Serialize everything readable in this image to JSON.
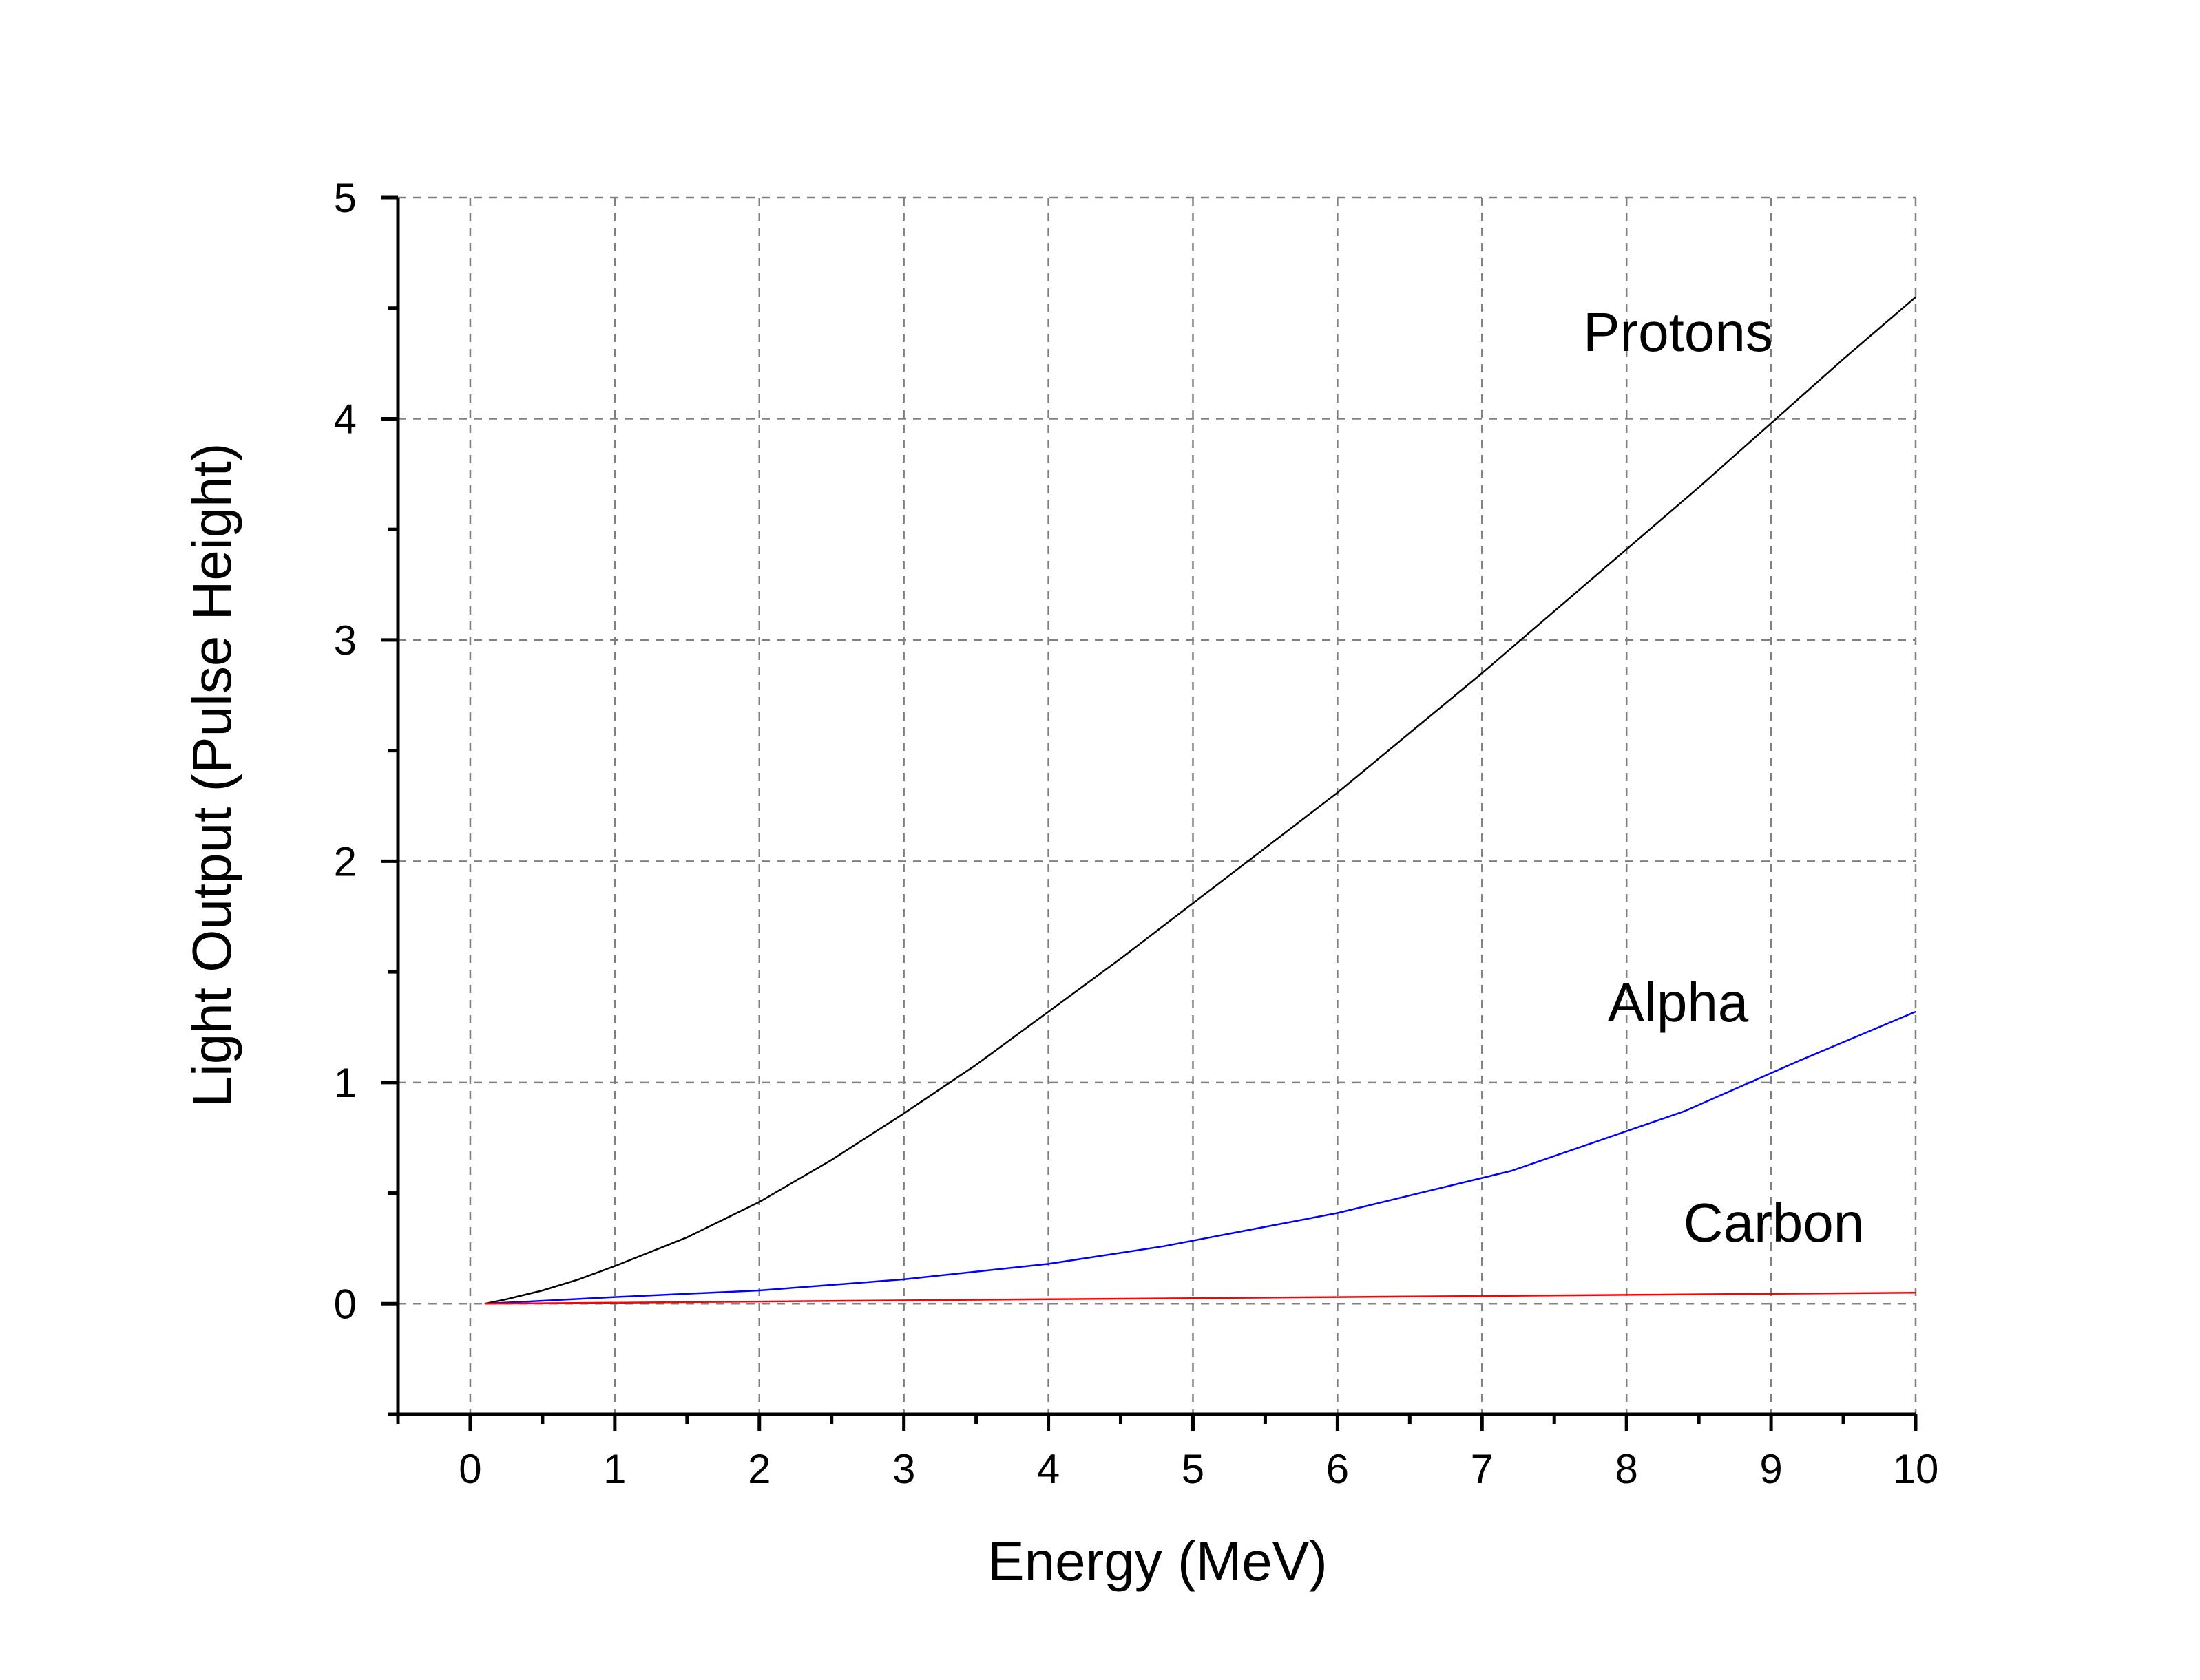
{
  "chart_data": {
    "type": "line",
    "xlabel": "Energy (MeV)",
    "ylabel": "Light Output (Pulse Height)",
    "xlim": [
      -0.5,
      10
    ],
    "ylim": [
      -0.5,
      5
    ],
    "xticks": [
      0,
      1,
      2,
      3,
      4,
      5,
      6,
      7,
      8,
      9,
      10
    ],
    "yticks": [
      0,
      1,
      2,
      3,
      4,
      5
    ],
    "grid": true,
    "series": [
      {
        "name": "Protons",
        "color": "#000000",
        "x": [
          0.1,
          0.25,
          0.5,
          0.75,
          1.0,
          1.5,
          2.0,
          2.5,
          3.0,
          3.5,
          4.0,
          4.5,
          5.0,
          5.5,
          6.0,
          6.5,
          7.0,
          7.5,
          8.0,
          8.5,
          9.0,
          9.5,
          10.0
        ],
        "y": [
          0.0,
          0.02,
          0.06,
          0.11,
          0.17,
          0.3,
          0.46,
          0.65,
          0.86,
          1.08,
          1.32,
          1.56,
          1.81,
          2.06,
          2.31,
          2.58,
          2.85,
          3.13,
          3.41,
          3.69,
          3.98,
          4.27,
          4.55
        ]
      },
      {
        "name": "Alpha",
        "color": "#0000ff",
        "x": [
          0.1,
          1.0,
          2.0,
          3.0,
          4.0,
          4.8,
          6.0,
          7.2,
          8.4,
          9.2,
          10.0
        ],
        "y": [
          0.0,
          0.03,
          0.06,
          0.11,
          0.18,
          0.26,
          0.41,
          0.6,
          0.87,
          1.1,
          1.32
        ]
      },
      {
        "name": "Carbon",
        "color": "#ff0000",
        "x": [
          0.1,
          2.0,
          4.0,
          6.0,
          8.0,
          10.0
        ],
        "y": [
          0.0,
          0.01,
          0.02,
          0.03,
          0.04,
          0.05
        ]
      }
    ]
  }
}
